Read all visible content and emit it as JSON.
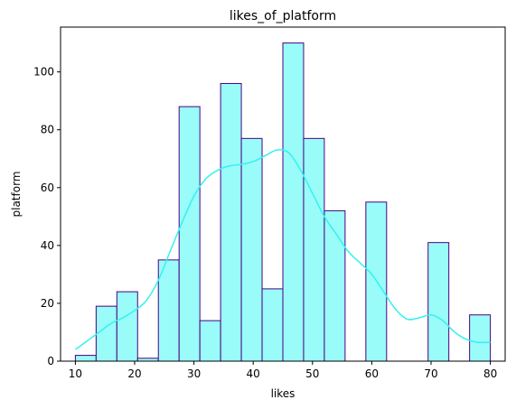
{
  "chart_data": {
    "type": "histogram",
    "title": "likes_of_platform",
    "xlabel": "likes",
    "ylabel": "platform",
    "xlim": [
      7.5,
      82.5
    ],
    "ylim": [
      0,
      115.5
    ],
    "xticks": [
      10,
      20,
      30,
      40,
      50,
      60,
      70,
      80
    ],
    "yticks": [
      0,
      20,
      40,
      60,
      80,
      100
    ],
    "bin_width": 3.5,
    "bars": [
      {
        "x0": 10.0,
        "x1": 13.5,
        "count": 2
      },
      {
        "x0": 13.5,
        "x1": 17.0,
        "count": 19
      },
      {
        "x0": 17.0,
        "x1": 20.5,
        "count": 24
      },
      {
        "x0": 20.5,
        "x1": 24.0,
        "count": 1
      },
      {
        "x0": 24.0,
        "x1": 27.5,
        "count": 35
      },
      {
        "x0": 27.5,
        "x1": 31.0,
        "count": 88
      },
      {
        "x0": 31.0,
        "x1": 34.5,
        "count": 14
      },
      {
        "x0": 34.5,
        "x1": 38.0,
        "count": 96
      },
      {
        "x0": 38.0,
        "x1": 41.5,
        "count": 77
      },
      {
        "x0": 41.5,
        "x1": 45.0,
        "count": 25
      },
      {
        "x0": 45.0,
        "x1": 48.5,
        "count": 110
      },
      {
        "x0": 48.5,
        "x1": 52.0,
        "count": 77
      },
      {
        "x0": 52.0,
        "x1": 55.5,
        "count": 52
      },
      {
        "x0": 59.0,
        "x1": 62.5,
        "count": 55
      },
      {
        "x0": 69.5,
        "x1": 73.0,
        "count": 41
      },
      {
        "x0": 76.5,
        "x1": 80.0,
        "count": 16
      }
    ],
    "kde": {
      "x": [
        10,
        12,
        14,
        16,
        18,
        20,
        22,
        24,
        26,
        28,
        30,
        32,
        34,
        36,
        38,
        40,
        42,
        44,
        46,
        48,
        50,
        52,
        54,
        56,
        58,
        60,
        62,
        64,
        66,
        68,
        70,
        72,
        74,
        76,
        78,
        80
      ],
      "y": [
        4,
        7,
        10,
        13,
        15,
        17.5,
        21,
        28,
        38,
        48,
        57,
        63,
        66,
        67.5,
        68,
        69,
        71,
        73,
        72,
        66,
        58,
        50,
        44,
        38,
        34,
        30,
        24,
        18,
        14.5,
        15,
        16,
        14,
        10,
        7.5,
        6.5,
        6.5
      ]
    },
    "colors": {
      "bar_fill": "#99fcf9",
      "bar_edge": "#4b0082",
      "kde_line": "#33f2f0"
    },
    "grid": false,
    "legend": "none"
  }
}
